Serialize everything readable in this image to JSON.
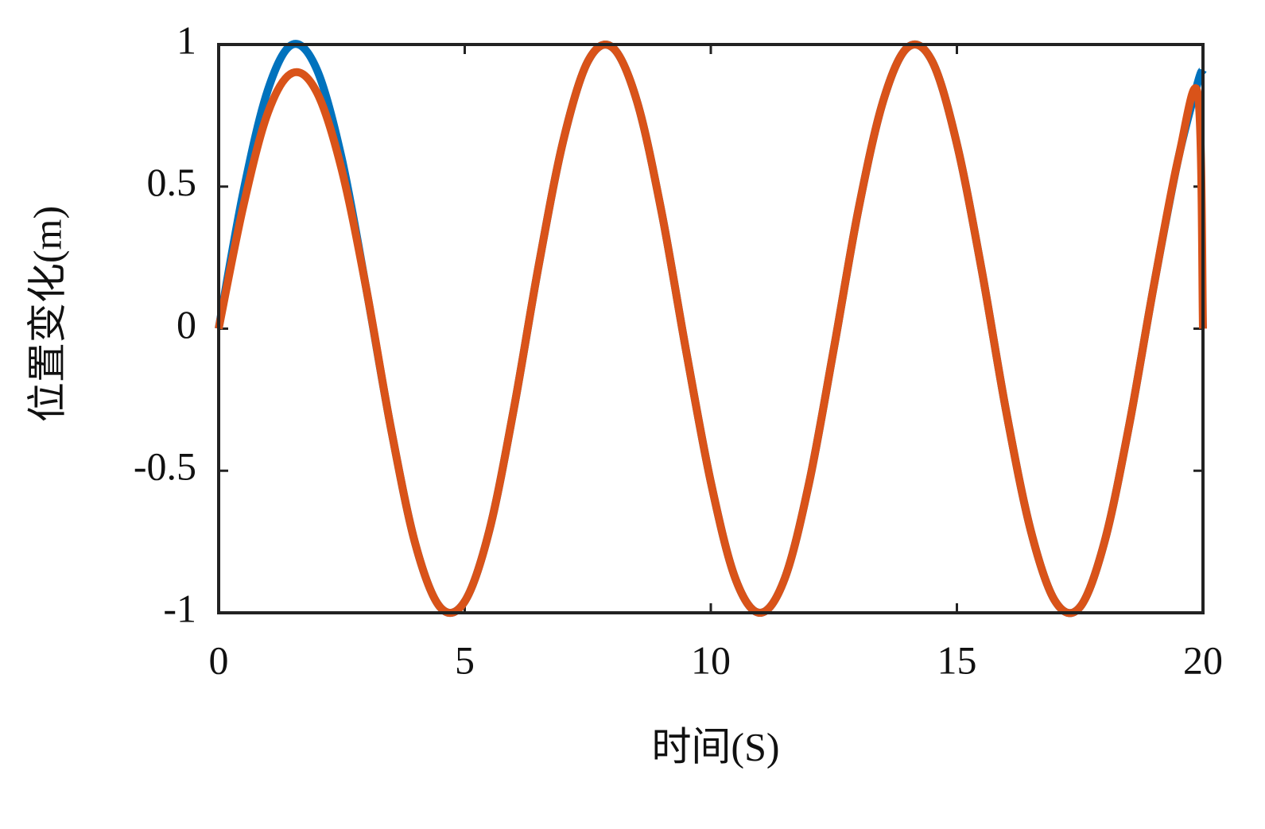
{
  "chart_data": {
    "type": "line",
    "xlabel": "时间(S)",
    "ylabel": "位置变化(m)",
    "x": [
      0,
      0.5,
      1,
      1.5,
      2,
      2.5,
      3,
      3.5,
      4,
      4.5,
      5,
      5.5,
      6,
      6.5,
      7,
      7.5,
      8,
      8.5,
      9,
      9.5,
      10,
      10.5,
      11,
      11.5,
      12,
      12.5,
      13,
      13.5,
      14,
      14.5,
      15,
      15.5,
      16,
      16.5,
      17,
      17.5,
      18,
      18.5,
      19,
      19.5,
      19.9,
      20
    ],
    "series": [
      {
        "color": "#0072bd",
        "values": [
          0,
          0.48,
          0.84,
          1.0,
          0.91,
          0.6,
          0.14,
          -0.35,
          -0.76,
          -0.98,
          -0.96,
          -0.71,
          -0.28,
          0.22,
          0.66,
          0.94,
          0.99,
          0.8,
          0.41,
          -0.08,
          -0.54,
          -0.88,
          -1.0,
          -0.88,
          -0.54,
          -0.07,
          0.42,
          0.8,
          0.99,
          0.94,
          0.65,
          0.21,
          -0.29,
          -0.71,
          -0.96,
          -0.98,
          -0.75,
          -0.34,
          0.15,
          0.6,
          0.87,
          0.91
        ]
      },
      {
        "color": "#d95319",
        "values": [
          0,
          0.43,
          0.76,
          0.9,
          0.83,
          0.56,
          0.14,
          -0.35,
          -0.76,
          -0.98,
          -0.96,
          -0.71,
          -0.28,
          0.22,
          0.66,
          0.94,
          0.99,
          0.8,
          0.41,
          -0.08,
          -0.54,
          -0.88,
          -1.0,
          -0.88,
          -0.54,
          -0.07,
          0.42,
          0.8,
          0.99,
          0.94,
          0.65,
          0.21,
          -0.29,
          -0.71,
          -0.96,
          -0.98,
          -0.75,
          -0.34,
          0.15,
          0.6,
          0.82,
          0
        ]
      }
    ],
    "xlim": [
      0,
      20
    ],
    "xticks": [
      0,
      5,
      10,
      15,
      20
    ],
    "ylim": [
      -1,
      1
    ],
    "yticks": [
      -1,
      -0.5,
      0,
      0.5,
      1
    ]
  }
}
